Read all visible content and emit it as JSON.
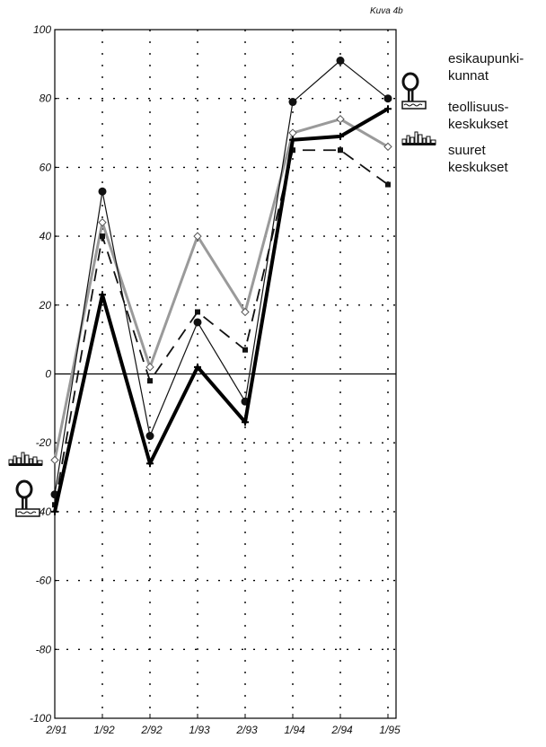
{
  "figure_label": "Kuva 4b",
  "chart_data": {
    "type": "line",
    "title": "",
    "xlabel": "",
    "ylabel": "",
    "categories": [
      "2/91",
      "1/92",
      "2/92",
      "1/93",
      "2/93",
      "1/94",
      "2/94",
      "1/95"
    ],
    "ylim": [
      -100,
      100
    ],
    "yticks": [
      -100,
      -80,
      -60,
      -40,
      -20,
      0,
      20,
      40,
      60,
      80,
      100
    ],
    "grid": true,
    "legend_position": "right",
    "series": [
      {
        "name": "esikaupunki-kunnat",
        "values": [
          -35,
          53,
          -18,
          15,
          -8,
          79,
          91,
          80
        ],
        "style": "thin-line-filled-circles",
        "color": "#111111"
      },
      {
        "name": "teollisuus-keskukset",
        "values": [
          -40,
          23,
          -26,
          2,
          -14,
          68,
          69,
          77
        ],
        "style": "thick-line",
        "color": "#000000"
      },
      {
        "name": "suuret keskukset",
        "values": [
          -25,
          44,
          2,
          40,
          18,
          70,
          74,
          66
        ],
        "style": "gray-line-open-diamonds",
        "color": "#9a9a9a"
      },
      {
        "name": "",
        "values": [
          -38,
          40,
          -2,
          18,
          7,
          65,
          65,
          55
        ],
        "style": "dashed-line-filled-squares",
        "color": "#111111"
      }
    ]
  },
  "legend": {
    "entries": [
      {
        "text": [
          "esikaupunki-",
          "kunnat"
        ],
        "icon": "tower-icon"
      },
      {
        "text": [
          "teollisuus-",
          "keskukset"
        ],
        "icon": "city-skyline-icon"
      },
      {
        "text": [
          "suuret",
          "keskukset"
        ],
        "icon": ""
      }
    ]
  },
  "colors": {
    "axis": "#000000",
    "grid": "#000000",
    "gray_series": "#9a9a9a"
  }
}
